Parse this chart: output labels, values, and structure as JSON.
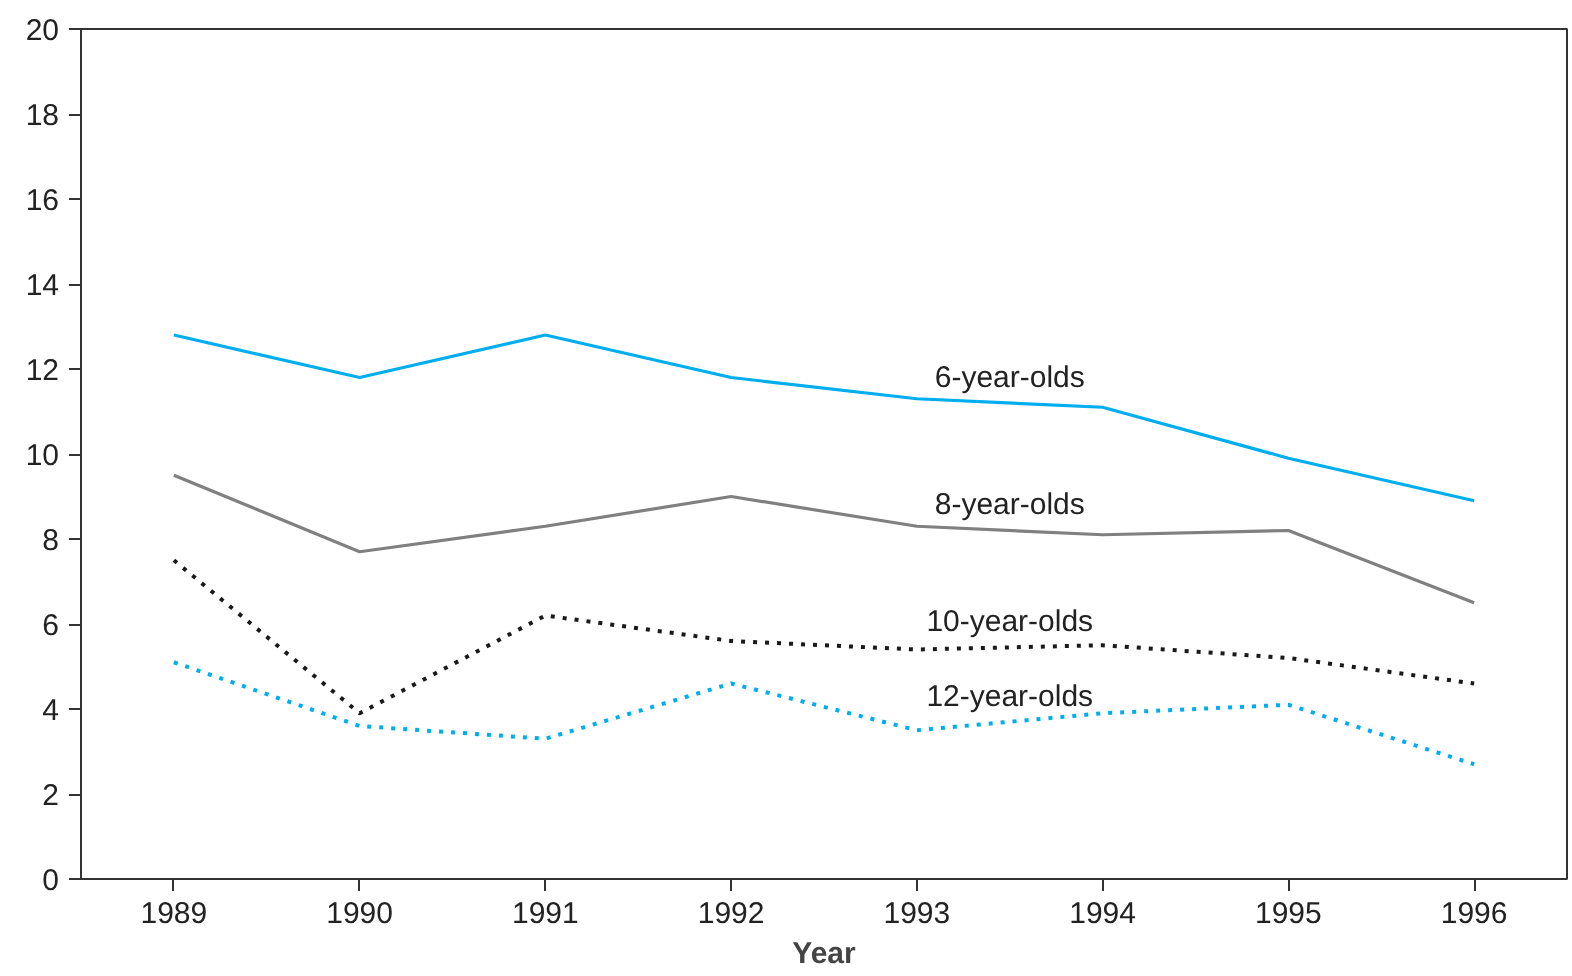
{
  "chart_data": {
    "type": "line",
    "xlabel": "Year",
    "x": [
      1989,
      1990,
      1991,
      1992,
      1993,
      1994,
      1995,
      1996
    ],
    "xlim": [
      1988.5,
      1996.5
    ],
    "xticks": [
      1989,
      1990,
      1991,
      1992,
      1993,
      1994,
      1995,
      1996
    ],
    "ylim": [
      0,
      20
    ],
    "yticks": [
      0,
      2,
      4,
      6,
      8,
      10,
      12,
      14,
      16,
      18,
      20
    ],
    "grid": false,
    "marker": "none",
    "series": [
      {
        "name": "6-year-olds",
        "color": "#00aeef",
        "line_style": "solid",
        "values": [
          12.8,
          11.8,
          12.8,
          11.8,
          11.3,
          11.1,
          9.9,
          8.9
        ]
      },
      {
        "name": "8-year-olds",
        "color": "#808080",
        "line_style": "solid",
        "values": [
          9.5,
          7.7,
          8.3,
          9.0,
          8.3,
          8.1,
          8.2,
          6.5
        ]
      },
      {
        "name": "10-year-olds",
        "color": "#1a1a1a",
        "line_style": "dotted",
        "values": [
          7.5,
          3.9,
          6.2,
          5.6,
          5.4,
          5.5,
          5.2,
          4.6
        ]
      },
      {
        "name": "12-year-olds",
        "color": "#00aeef",
        "line_style": "dotted",
        "values": [
          5.1,
          3.6,
          3.3,
          4.6,
          3.5,
          3.9,
          4.1,
          2.7
        ]
      }
    ]
  }
}
